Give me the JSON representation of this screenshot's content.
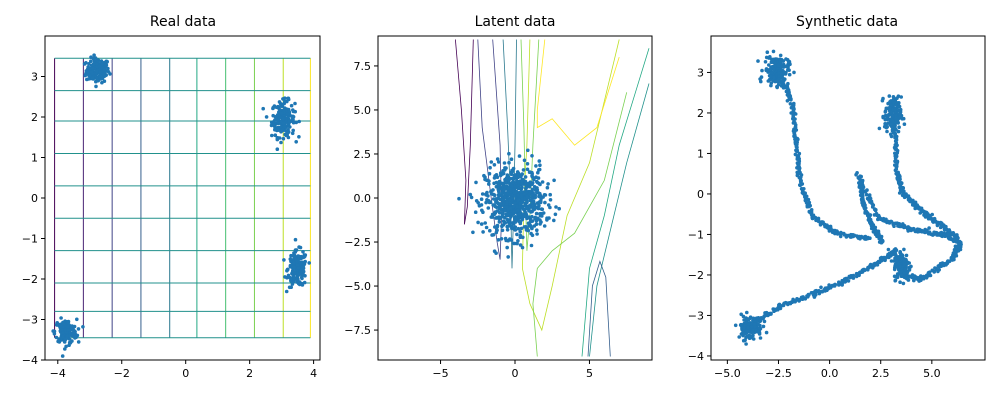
{
  "chart_data": [
    {
      "type": "scatter",
      "title": "Real data",
      "xlim": [
        -4.4,
        4.2
      ],
      "ylim": [
        -4.0,
        4.0
      ],
      "xticks": [
        -4,
        -2,
        0,
        2,
        4
      ],
      "yticks": [
        -4,
        -3,
        -2,
        -1,
        0,
        1,
        2,
        3
      ],
      "point_color": "#1f77b4",
      "grid_overlay": {
        "vertical_x": [
          -4.1,
          -3.2,
          -2.3,
          -1.4,
          -0.5,
          0.35,
          1.25,
          2.15,
          3.05,
          3.9
        ],
        "horizontal_y": [
          3.45,
          2.65,
          1.9,
          1.1,
          0.3,
          -0.5,
          -1.3,
          -2.1,
          -2.8,
          -3.45
        ],
        "colormap": "viridis"
      },
      "clusters": [
        {
          "cx": -2.75,
          "cy": 3.15,
          "sx": 0.18,
          "sy": 0.15,
          "n": 160
        },
        {
          "cx": 3.05,
          "cy": 1.95,
          "sx": 0.18,
          "sy": 0.22,
          "n": 180
        },
        {
          "cx": 3.5,
          "cy": -1.75,
          "sx": 0.15,
          "sy": 0.22,
          "n": 170
        },
        {
          "cx": -3.75,
          "cy": -3.3,
          "sx": 0.17,
          "sy": 0.15,
          "n": 150
        }
      ]
    },
    {
      "type": "scatter",
      "title": "Latent data",
      "xlim": [
        -9.2,
        9.2
      ],
      "ylim": [
        -9.2,
        9.2
      ],
      "xticks": [
        -5,
        0,
        5
      ],
      "yticks": [
        7.5,
        5.0,
        2.5,
        0.0,
        -2.5,
        -5.0,
        -7.5
      ],
      "point_color": "#1f77b4",
      "clusters": [
        {
          "cx": 0.0,
          "cy": -0.2,
          "sx": 1.0,
          "sy": 1.0,
          "n": 700
        }
      ],
      "contour_colormap": "viridis"
    },
    {
      "type": "scatter",
      "title": "Synthetic data",
      "xlim": [
        -5.8,
        7.6
      ],
      "ylim": [
        -4.1,
        3.9
      ],
      "xticks": [
        -5.0,
        -2.5,
        0.0,
        2.5,
        5.0
      ],
      "yticks": [
        -4,
        -3,
        -2,
        -1,
        0,
        1,
        2,
        3
      ],
      "point_color": "#1f77b4",
      "clusters": [
        {
          "cx": -2.6,
          "cy": 3.05,
          "sx": 0.3,
          "sy": 0.18,
          "n": 160
        },
        {
          "cx": 3.1,
          "cy": 1.95,
          "sx": 0.2,
          "sy": 0.22,
          "n": 150
        },
        {
          "cx": 3.55,
          "cy": -1.75,
          "sx": 0.2,
          "sy": 0.18,
          "n": 140
        },
        {
          "cx": -3.9,
          "cy": -3.3,
          "sx": 0.3,
          "sy": 0.15,
          "n": 130
        }
      ],
      "trails": [
        [
          [
            -2.5,
            3.0
          ],
          [
            -1.8,
            2.2
          ],
          [
            -1.6,
            1.1
          ],
          [
            -1.4,
            0.2
          ],
          [
            -0.8,
            -0.6
          ],
          [
            0.5,
            -1.0
          ],
          [
            2.0,
            -1.1
          ]
        ],
        [
          [
            1.3,
            0.5
          ],
          [
            2.4,
            -0.6
          ],
          [
            4.2,
            -0.9
          ],
          [
            5.5,
            -1.0
          ],
          [
            6.4,
            -1.2
          ],
          [
            6.0,
            -1.6
          ],
          [
            4.5,
            -2.1
          ],
          [
            3.5,
            -2.0
          ]
        ],
        [
          [
            -3.9,
            -3.25
          ],
          [
            -2.5,
            -2.8
          ],
          [
            -1.0,
            -2.5
          ],
          [
            0.5,
            -2.2
          ],
          [
            2.0,
            -1.8
          ],
          [
            3.3,
            -1.4
          ]
        ],
        [
          [
            3.2,
            1.6
          ],
          [
            3.3,
            0.5
          ],
          [
            3.6,
            0.0
          ],
          [
            4.5,
            -0.4
          ],
          [
            5.5,
            -0.8
          ],
          [
            6.3,
            -1.1
          ]
        ],
        [
          [
            1.5,
            0.4
          ],
          [
            1.6,
            -0.2
          ],
          [
            2.1,
            -0.8
          ],
          [
            2.6,
            -1.2
          ]
        ]
      ]
    }
  ]
}
